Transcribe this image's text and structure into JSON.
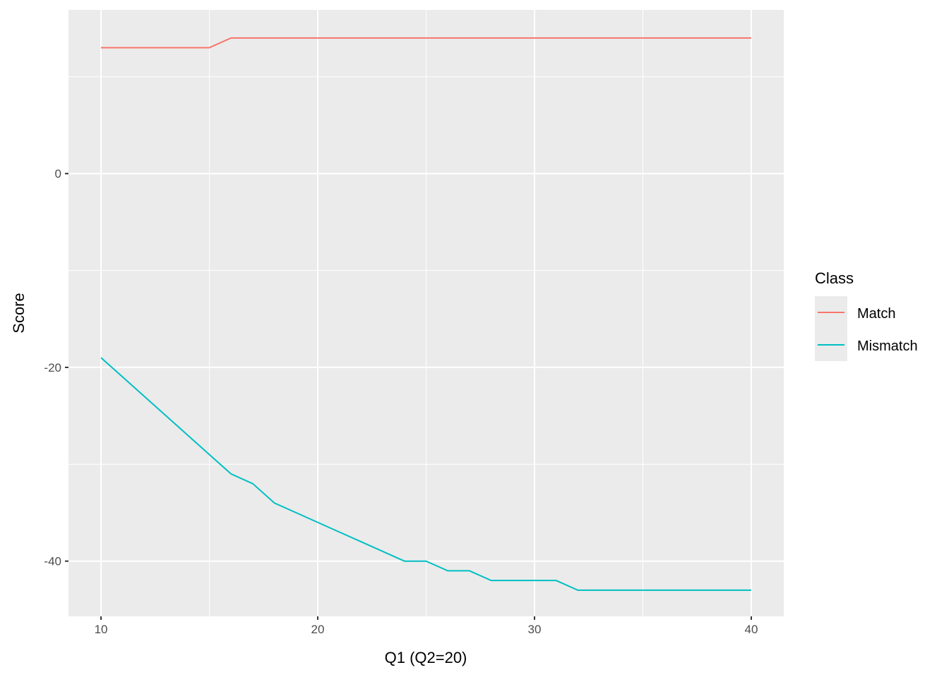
{
  "chart_data": {
    "type": "line",
    "title": "",
    "xlabel": "Q1 (Q2=20)",
    "ylabel": "Score",
    "xlim": [
      8.5,
      41.5
    ],
    "ylim": [
      -45.7,
      16.9
    ],
    "x_ticks": [
      10,
      20,
      30,
      40
    ],
    "x_minor": [
      15,
      25,
      35
    ],
    "y_ticks": [
      -40,
      -20,
      0
    ],
    "y_minor": [
      -30,
      -10,
      10
    ],
    "grid": true,
    "legend": {
      "title": "Class",
      "position": "right"
    },
    "x": [
      10,
      11,
      12,
      13,
      14,
      15,
      16,
      17,
      18,
      19,
      20,
      21,
      22,
      23,
      24,
      25,
      26,
      27,
      28,
      29,
      30,
      31,
      32,
      33,
      34,
      35,
      36,
      37,
      38,
      39,
      40
    ],
    "series": [
      {
        "name": "Match",
        "color": "#F8766D",
        "values": [
          13,
          13,
          13,
          13,
          13,
          13,
          14,
          14,
          14,
          14,
          14,
          14,
          14,
          14,
          14,
          14,
          14,
          14,
          14,
          14,
          14,
          14,
          14,
          14,
          14,
          14,
          14,
          14,
          14,
          14,
          14
        ]
      },
      {
        "name": "Mismatch",
        "color": "#00BFC4",
        "values": [
          -19,
          -21,
          -23,
          -25,
          -27,
          -29,
          -31,
          -32,
          -34,
          -35,
          -36,
          -37,
          -38,
          -39,
          -40,
          -40,
          -41,
          -41,
          -42,
          -42,
          -42,
          -42,
          -43,
          -43,
          -43,
          -43,
          -43,
          -43,
          -43,
          -43,
          -43
        ]
      }
    ]
  }
}
